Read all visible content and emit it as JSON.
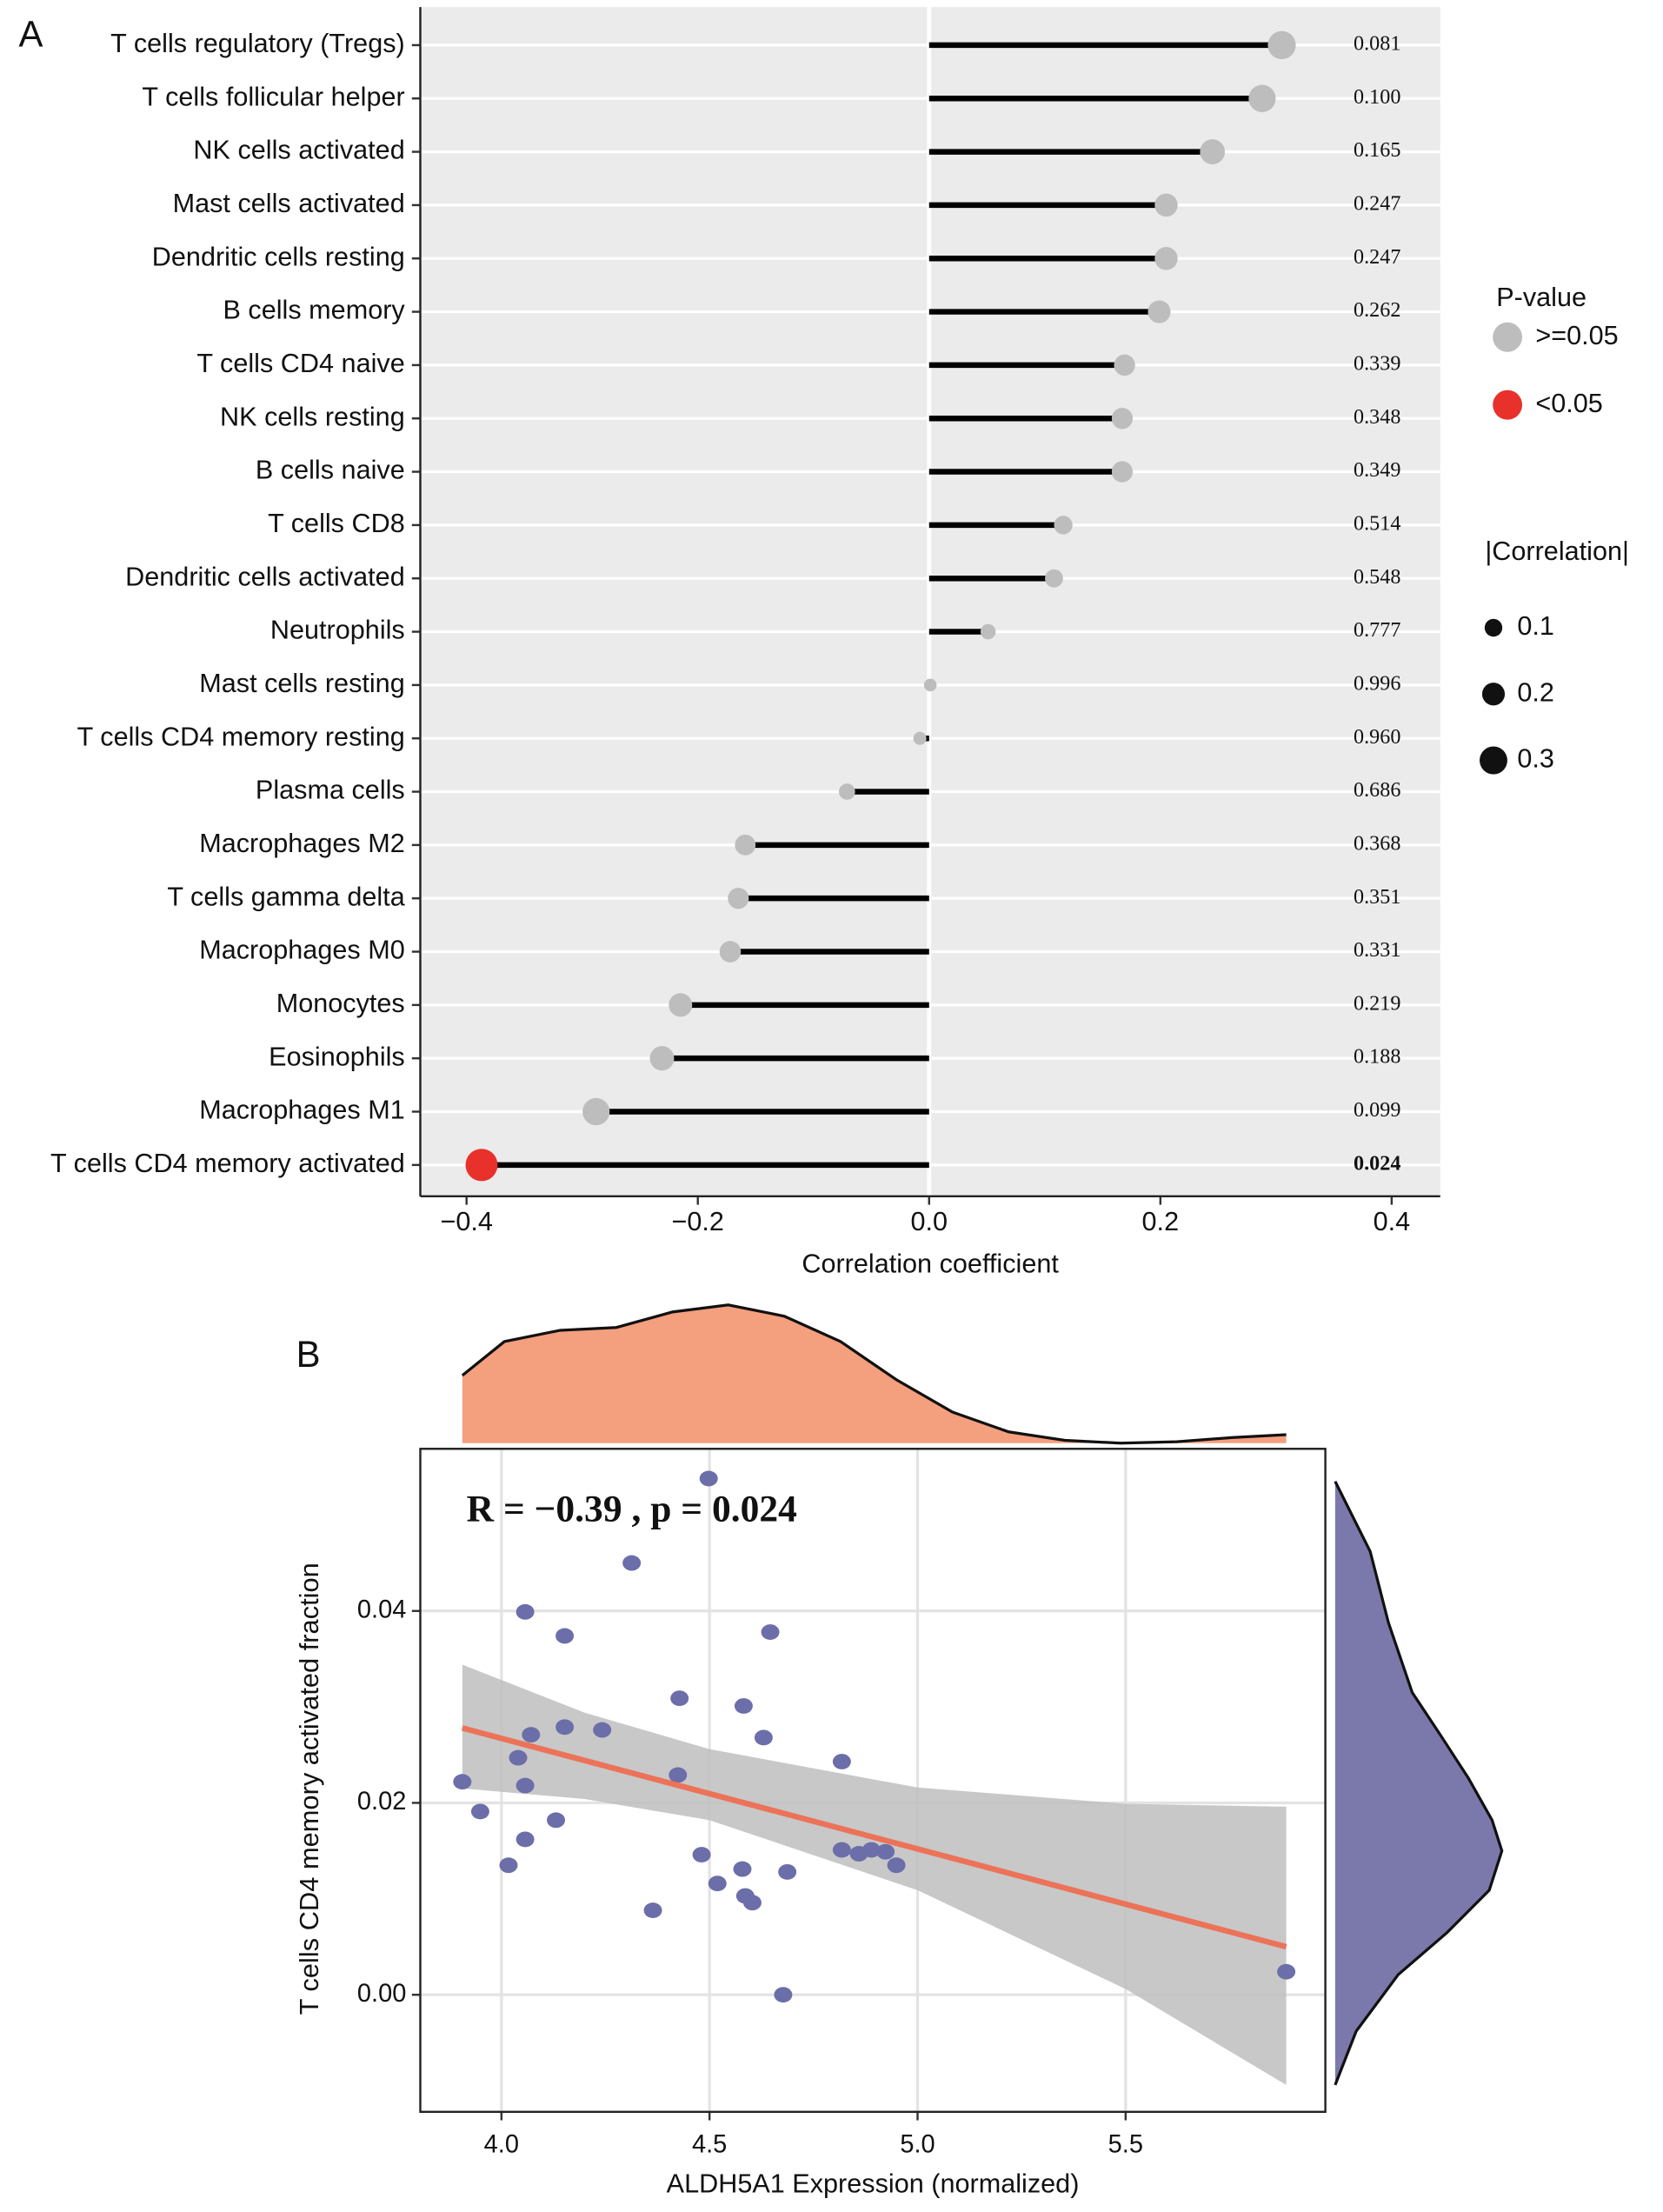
{
  "chart_data": [
    {
      "type": "lollipop",
      "panel_label": "A",
      "xlabel": "Correlation coefficient",
      "categories": [
        "T cells regulatory (Tregs)",
        "T cells follicular helper",
        "NK cells activated",
        "Mast cells activated",
        "Dendritic cells resting",
        "B cells memory",
        "T cells CD4 naive",
        "NK cells resting",
        "B cells naive",
        "T cells CD8",
        "Dendritic cells activated",
        "Neutrophils",
        "Mast cells resting",
        "T cells CD4 memory resting",
        "Plasma cells",
        "Macrophages M2",
        "T cells gamma delta",
        "Macrophages M0",
        "Monocytes",
        "Eosinophils",
        "Macrophages M1",
        "T cells CD4 memory activated"
      ],
      "values": [
        0.305,
        0.288,
        0.245,
        0.205,
        0.205,
        0.199,
        0.169,
        0.167,
        0.167,
        0.116,
        0.108,
        0.051,
        0.001,
        -0.008,
        -0.071,
        -0.159,
        -0.165,
        -0.172,
        -0.215,
        -0.231,
        -0.288,
        -0.387
      ],
      "p_values": [
        0.081,
        0.1,
        0.165,
        0.247,
        0.247,
        0.262,
        0.339,
        0.348,
        0.349,
        0.514,
        0.548,
        0.777,
        0.996,
        0.96,
        0.686,
        0.368,
        0.351,
        0.331,
        0.219,
        0.188,
        0.099,
        0.024
      ],
      "p_value_labels": [
        "0.081",
        "0.100",
        "0.165",
        "0.247",
        "0.247",
        "0.262",
        "0.339",
        "0.348",
        "0.349",
        "0.514",
        "0.548",
        "0.777",
        "0.996",
        "0.960",
        "0.686",
        "0.368",
        "0.351",
        "0.331",
        "0.219",
        "0.188",
        "0.099",
        "0.024"
      ],
      "groups": [
        0,
        0,
        0,
        0,
        0,
        0,
        0,
        0,
        0,
        0,
        0,
        0,
        0,
        0,
        0,
        0,
        0,
        0,
        0,
        0,
        0,
        1
      ],
      "legend": {
        "title": "P-value",
        "items": [
          {
            "label": ">=0.05",
            "color": "#bdbdbd"
          },
          {
            "label": "<0.05",
            "color": "#e8312a"
          }
        ]
      },
      "size_legend": {
        "title": "|Correlation|",
        "values": [
          0.1,
          0.2,
          0.3
        ]
      },
      "xlim": [
        -0.44,
        0.442
      ],
      "xticks": [
        {
          "value": -0.4,
          "label": "−0.4"
        },
        {
          "value": -0.2,
          "label": "−0.2"
        },
        {
          "value": 0,
          "label": "0.0"
        },
        0.2,
        0.4
      ]
    },
    {
      "type": "scatter",
      "panel_label": "B",
      "xlabel": "ALDH5A1 Expression (normalized)",
      "ylabel": "T cells CD4 memory activated fraction",
      "annotation": "R = −0.39 , p = 0.024",
      "color": "#6b6ea8",
      "x": [
        3.906,
        3.949,
        4.017,
        4.04,
        4.057,
        4.057,
        4.057,
        4.071,
        4.131,
        4.152,
        4.152,
        4.242,
        4.313,
        4.364,
        4.424,
        4.428,
        4.481,
        4.498,
        4.519,
        4.579,
        4.582,
        4.586,
        4.603,
        4.63,
        4.646,
        4.677,
        4.687,
        4.818,
        4.818,
        4.859,
        4.889,
        4.923,
        4.949,
        5.886
      ],
      "y": [
        0.0222,
        0.0191,
        0.0135,
        0.0247,
        0.0399,
        0.0218,
        0.0162,
        0.0271,
        0.0182,
        0.0374,
        0.0279,
        0.0276,
        0.045,
        0.0088,
        0.0229,
        0.0309,
        0.0146,
        0.0538,
        0.0116,
        0.0131,
        0.0301,
        0.0103,
        0.0096,
        0.0268,
        0.0378,
        0.0,
        0.0128,
        0.0243,
        0.0151,
        0.0147,
        0.0151,
        0.0149,
        0.0135,
        0.0024
      ],
      "fit": {
        "x": [
          3.906,
          5.886
        ],
        "y": [
          0.0278,
          0.005
        ],
        "color": "#ec7258"
      },
      "ci": {
        "x": [
          3.906,
          4.2,
          4.5,
          5.0,
          5.5,
          5.886
        ],
        "lower": [
          0.0215,
          0.0204,
          0.0182,
          0.0109,
          0.0006,
          -0.0094
        ],
        "upper": [
          0.0344,
          0.0294,
          0.0256,
          0.0216,
          0.0199,
          0.0196
        ],
        "color": "#bebebe"
      },
      "x_density": {
        "x": [
          3.906,
          4.007,
          4.141,
          4.276,
          4.411,
          4.545,
          4.68,
          4.815,
          4.949,
          5.084,
          5.219,
          5.354,
          5.488,
          5.623,
          5.758,
          5.886
        ],
        "density": [
          0.48,
          0.72,
          0.8,
          0.82,
          0.93,
          0.98,
          0.9,
          0.72,
          0.45,
          0.22,
          0.08,
          0.02,
          0,
          0.01,
          0.04,
          0.06
        ],
        "color": "#f49f7e"
      },
      "y_density": {
        "y": [
          0.0535,
          0.0462,
          0.0388,
          0.0315,
          0.0271,
          0.0226,
          0.0182,
          0.015,
          0.0109,
          0.0065,
          0.0021,
          -0.0038,
          -0.0094
        ],
        "density": [
          0,
          0.25,
          0.38,
          0.55,
          0.75,
          0.95,
          1.12,
          1.19,
          1.1,
          0.8,
          0.45,
          0.15,
          0
        ],
        "color": "#7b79ab"
      },
      "xlim": [
        3.805,
        5.98
      ],
      "xticks": [
        {
          "value": 4,
          "label": "4.0"
        },
        4.5,
        {
          "value": 5,
          "label": "5.0"
        },
        5.5
      ],
      "ylim": [
        -0.0122,
        0.0569
      ],
      "yticks": [
        {
          "value": 0,
          "label": "0.00"
        },
        0.02,
        0.04
      ]
    }
  ]
}
